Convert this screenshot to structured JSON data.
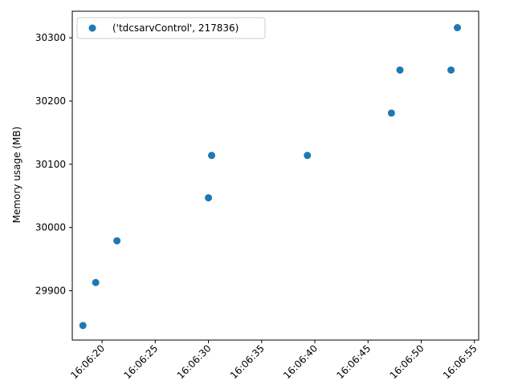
{
  "chart_data": {
    "type": "scatter",
    "title": "",
    "xlabel": "",
    "ylabel": "Memory usage (MB)",
    "x_is_time": true,
    "xlim": [
      "16:06:17.2",
      "16:06:55.4"
    ],
    "ylim": [
      29822,
      30342
    ],
    "x_ticks": [
      "16:06:20",
      "16:06:25",
      "16:06:30",
      "16:06:35",
      "16:06:40",
      "16:06:45",
      "16:06:50",
      "16:06:55"
    ],
    "y_ticks": [
      29900,
      30000,
      30100,
      30200,
      30300
    ],
    "grid": false,
    "legend": {
      "placement": "top-left",
      "entries": [
        "('tdcsarvControl', 217836)"
      ]
    },
    "series": [
      {
        "name": "('tdcsarvControl', 217836)",
        "color": "#1f77b4",
        "points": [
          {
            "x": "16:06:18.2",
            "y": 29845
          },
          {
            "x": "16:06:19.4",
            "y": 29913
          },
          {
            "x": "16:06:21.4",
            "y": 29979
          },
          {
            "x": "16:06:30.0",
            "y": 30047
          },
          {
            "x": "16:06:30.3",
            "y": 30114
          },
          {
            "x": "16:06:39.3",
            "y": 30114
          },
          {
            "x": "16:06:47.2",
            "y": 30181
          },
          {
            "x": "16:06:48.0",
            "y": 30249
          },
          {
            "x": "16:06:52.8",
            "y": 30249
          },
          {
            "x": "16:06:53.4",
            "y": 30316
          }
        ]
      }
    ]
  }
}
